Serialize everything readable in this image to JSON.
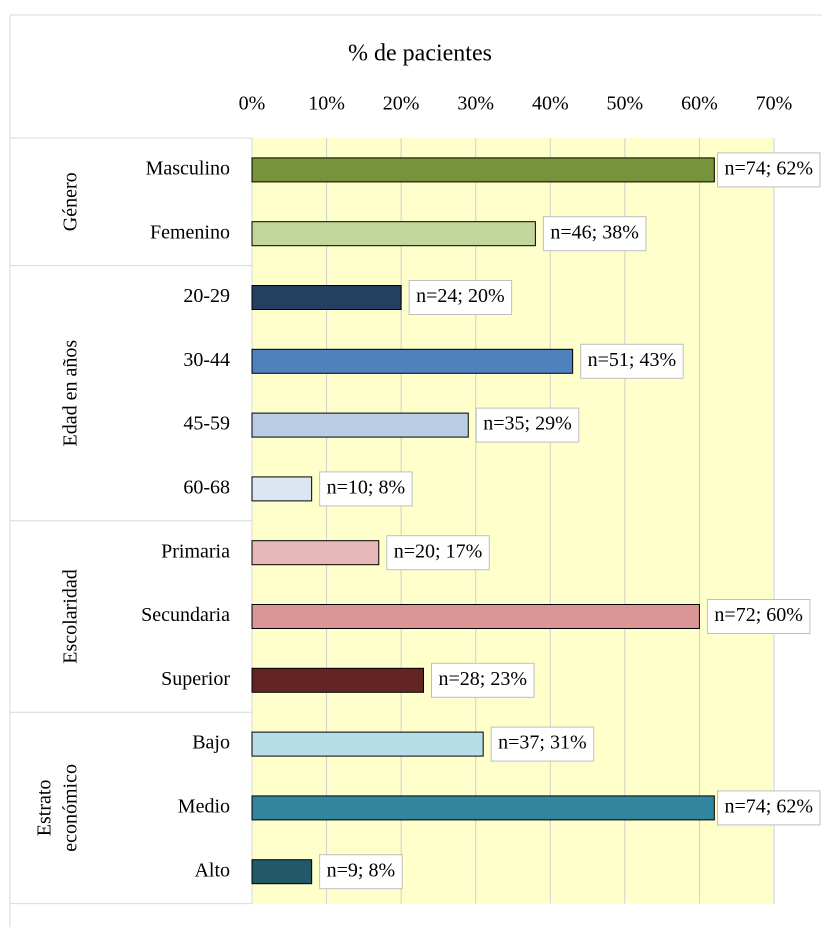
{
  "chart_data": {
    "type": "bar",
    "orientation": "horizontal",
    "title": "% de pacientes",
    "xlim": [
      0,
      70
    ],
    "xticks": [
      {
        "value": 0,
        "label": "0%"
      },
      {
        "value": 10,
        "label": "10%"
      },
      {
        "value": 20,
        "label": "20%"
      },
      {
        "value": 30,
        "label": "30%"
      },
      {
        "value": 40,
        "label": "40%"
      },
      {
        "value": 50,
        "label": "50%"
      },
      {
        "value": 60,
        "label": "60%"
      },
      {
        "value": 70,
        "label": "70%"
      }
    ],
    "grid": true,
    "groups": [
      {
        "label": [
          "Género"
        ],
        "categories": [
          "Masculino",
          "Femenino"
        ],
        "values": [
          62,
          38
        ],
        "value_labels": [
          "n=74; 62%",
          "n=46; 38%"
        ],
        "colors": [
          "#77933c",
          "#c3d69b"
        ]
      },
      {
        "label": [
          "Edad en años"
        ],
        "categories": [
          "20-29",
          "30-44",
          "45-59",
          "60-68"
        ],
        "values": [
          20,
          43,
          29,
          8
        ],
        "value_labels": [
          "n=24; 20%",
          "n=51; 43%",
          "n=35; 29%",
          "n=10; 8%"
        ],
        "colors": [
          "#243f60",
          "#4f81bd",
          "#b9cde5",
          "#dce6f2"
        ]
      },
      {
        "label": [
          "Escolaridad"
        ],
        "categories": [
          "Primaria",
          "Secundaria",
          "Superior"
        ],
        "values": [
          17,
          60,
          23
        ],
        "value_labels": [
          "n=20; 17%",
          "n=72; 60%",
          "n=28; 23%"
        ],
        "colors": [
          "#e6b9b8",
          "#d99694",
          "#632523"
        ]
      },
      {
        "label": [
          "Estrato",
          "económico"
        ],
        "categories": [
          "Bajo",
          "Medio",
          "Alto"
        ],
        "values": [
          31,
          62,
          8
        ],
        "value_labels": [
          "n=37; 31%",
          "n=74; 62%",
          "n=9; 8%"
        ],
        "colors": [
          "#b7dee8",
          "#31859c",
          "#215968"
        ]
      }
    ]
  }
}
